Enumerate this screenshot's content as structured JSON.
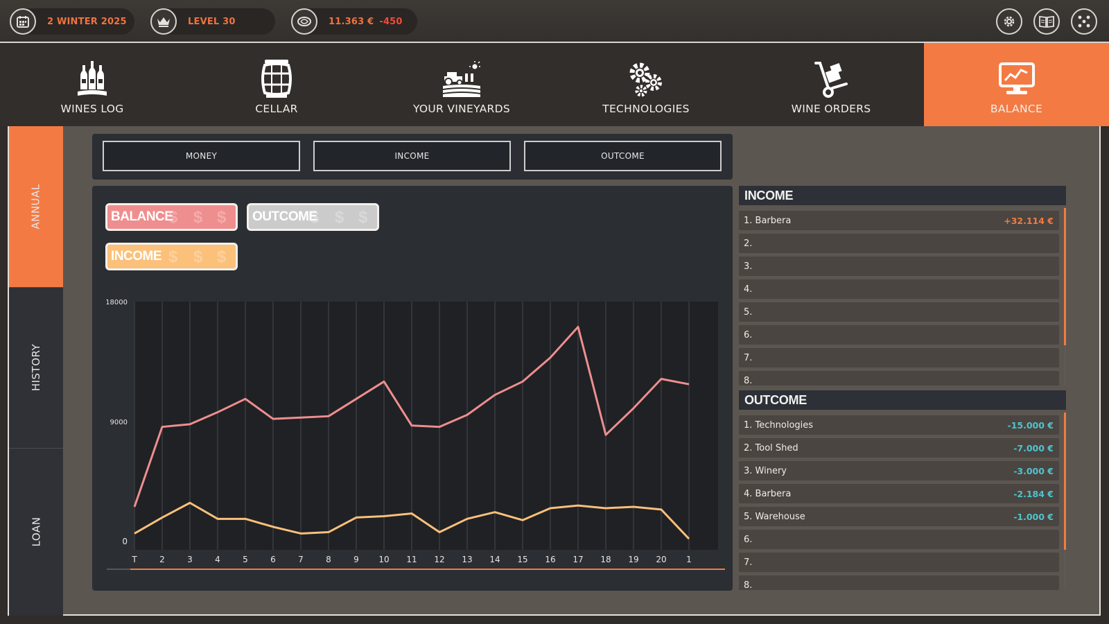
{
  "status": {
    "date": "2 WINTER 2025",
    "level": "LEVEL 30",
    "money": "11.363 €",
    "money_delta": "-450"
  },
  "controls": [
    {
      "name": "settings",
      "icon": "gear-icon"
    },
    {
      "name": "guide",
      "icon": "book-icon"
    },
    {
      "name": "network",
      "icon": "dots-icon"
    }
  ],
  "nav": {
    "tabs": [
      {
        "label": "WINES LOG",
        "icon": "wine-bottles-icon"
      },
      {
        "label": "CELLAR",
        "icon": "barrel-icon"
      },
      {
        "label": "YOUR VINEYARDS",
        "icon": "tractor-field-icon"
      },
      {
        "label": "TECHNOLOGIES",
        "icon": "gears-icon"
      },
      {
        "label": "WINE ORDERS",
        "icon": "hand-truck-icon"
      },
      {
        "label": "BALANCE",
        "icon": "monitor-chart-icon"
      }
    ],
    "active": "BALANCE"
  },
  "side": {
    "tabs": [
      "ANNUAL",
      "HISTORY",
      "LOAN"
    ],
    "active": "ANNUAL"
  },
  "filters": [
    "MONEY",
    "INCOME",
    "OUTCOME"
  ],
  "legend": [
    {
      "label": "BALANCE",
      "color": "#ef8e8e"
    },
    {
      "label": "OUTCOME",
      "color": "#cfcfcf"
    },
    {
      "label": "INCOME",
      "color": "#fbc07a"
    }
  ],
  "chart_data": {
    "type": "line",
    "categories": [
      "T",
      "2",
      "3",
      "4",
      "5",
      "6",
      "7",
      "8",
      "9",
      "10",
      "11",
      "12",
      "13",
      "14",
      "15",
      "16",
      "17",
      "18",
      "19",
      "20",
      "1"
    ],
    "y_ticks": [
      "18000",
      "9000",
      "0"
    ],
    "ylim": [
      0,
      18000
    ],
    "series": [
      {
        "name": "BALANCE",
        "color": "#ef8e8e",
        "values": [
          2600,
          8600,
          8800,
          9700,
          10700,
          9200,
          9300,
          9400,
          10700,
          12000,
          8700,
          8600,
          9500,
          11000,
          12000,
          13800,
          16100,
          8000,
          10000,
          12200,
          11800
        ]
      },
      {
        "name": "INCOME",
        "color": "#fbc07a",
        "values": [
          600,
          1800,
          2900,
          1700,
          1700,
          1100,
          600,
          700,
          1800,
          1900,
          2100,
          700,
          1700,
          2200,
          1600,
          2500,
          2700,
          2500,
          2600,
          2400,
          200
        ]
      }
    ],
    "grid": true
  },
  "income": {
    "title": "INCOME",
    "rows": [
      {
        "label": "1. Barbera",
        "value": "+32.114 €"
      },
      {
        "label": "2.",
        "value": ""
      },
      {
        "label": "3.",
        "value": ""
      },
      {
        "label": "4.",
        "value": ""
      },
      {
        "label": "5.",
        "value": ""
      },
      {
        "label": "6.",
        "value": ""
      },
      {
        "label": "7.",
        "value": ""
      },
      {
        "label": "8.",
        "value": ""
      }
    ],
    "value_color": "#f47a43"
  },
  "outcome": {
    "title": "OUTCOME",
    "rows": [
      {
        "label": "1. Technologies",
        "value": "-15.000 €"
      },
      {
        "label": "2. Tool Shed",
        "value": "-7.000 €"
      },
      {
        "label": "3. Winery",
        "value": "-3.000 €"
      },
      {
        "label": "4. Barbera",
        "value": "-2.184 €"
      },
      {
        "label": "5. Warehouse",
        "value": "-1.000 €"
      },
      {
        "label": "6.",
        "value": ""
      },
      {
        "label": "7.",
        "value": ""
      },
      {
        "label": "8.",
        "value": ""
      }
    ],
    "value_color": "#4fc4cf"
  }
}
